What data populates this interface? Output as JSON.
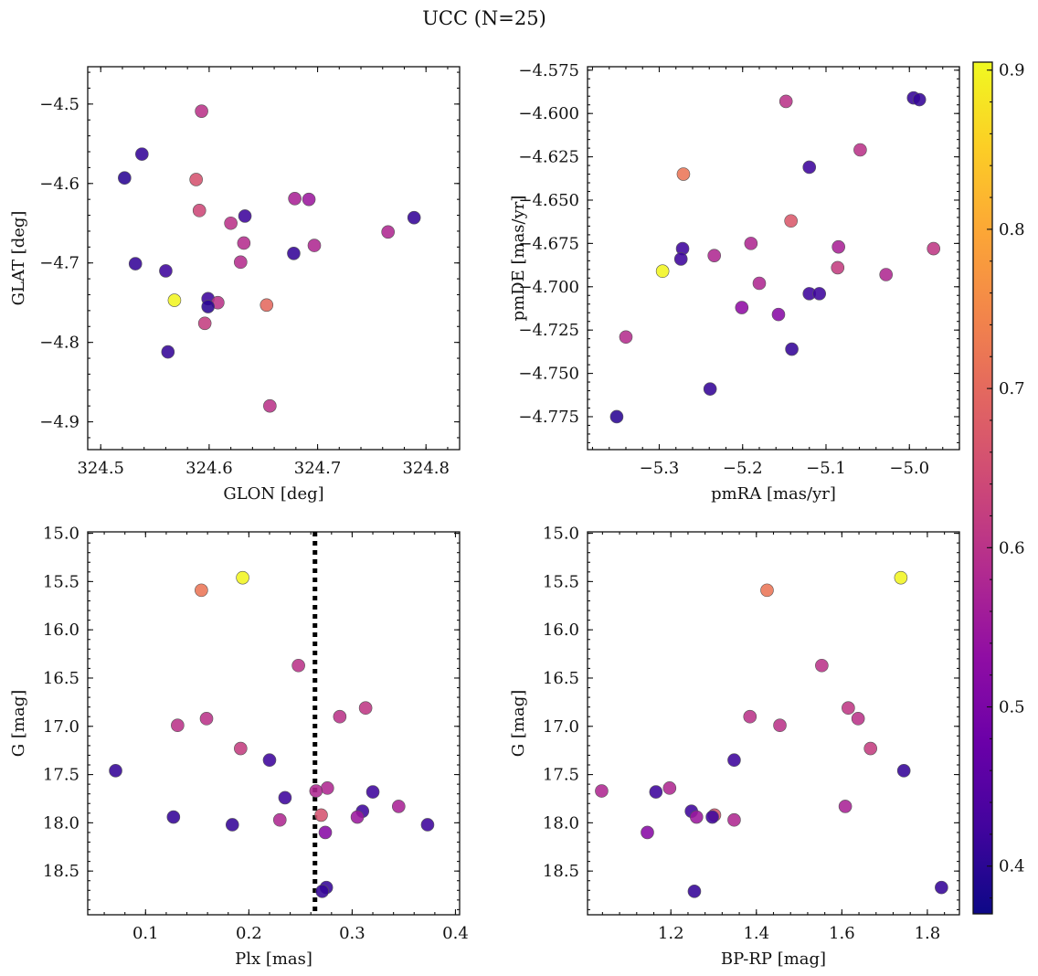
{
  "figure": {
    "title": "UCC (N=25)"
  },
  "colorbar": {
    "vmin": 0.37,
    "vmax": 0.905,
    "ticks": [
      0.4,
      0.5,
      0.6,
      0.7,
      0.8,
      0.9
    ],
    "ticklabels": [
      "0.4",
      "0.5",
      "0.6",
      "0.7",
      "0.8",
      "0.9"
    ],
    "colormap": "plasma"
  },
  "chart_data": [
    {
      "type": "scatter",
      "xlabel": "GLON [deg]",
      "ylabel": "GLAT [deg]",
      "xlim": [
        324.488,
        324.831
      ],
      "ylim": [
        -4.935,
        -4.453
      ],
      "yinvert": false,
      "xticks": [
        324.5,
        324.6,
        324.7,
        324.8
      ],
      "xticklabels": [
        "324.5",
        "324.6",
        "324.7",
        "324.8"
      ],
      "yticks": [
        -4.5,
        -4.6,
        -4.7,
        -4.8,
        -4.9
      ],
      "yticklabels": [
        "−4.5",
        "−4.6",
        "−4.7",
        "−4.8",
        "−4.9"
      ],
      "points": [
        {
          "x": 324.593,
          "y": -4.509,
          "c": 0.6
        },
        {
          "x": 324.538,
          "y": -4.563,
          "c": 0.41
        },
        {
          "x": 324.522,
          "y": -4.593,
          "c": 0.4
        },
        {
          "x": 324.588,
          "y": -4.595,
          "c": 0.66
        },
        {
          "x": 324.591,
          "y": -4.634,
          "c": 0.64
        },
        {
          "x": 324.633,
          "y": -4.641,
          "c": 0.42
        },
        {
          "x": 324.679,
          "y": -4.619,
          "c": 0.57
        },
        {
          "x": 324.692,
          "y": -4.62,
          "c": 0.55
        },
        {
          "x": 324.789,
          "y": -4.643,
          "c": 0.41
        },
        {
          "x": 324.62,
          "y": -4.65,
          "c": 0.6
        },
        {
          "x": 324.765,
          "y": -4.661,
          "c": 0.58
        },
        {
          "x": 324.632,
          "y": -4.675,
          "c": 0.59
        },
        {
          "x": 324.697,
          "y": -4.678,
          "c": 0.58
        },
        {
          "x": 324.678,
          "y": -4.688,
          "c": 0.41
        },
        {
          "x": 324.629,
          "y": -4.699,
          "c": 0.59
        },
        {
          "x": 324.532,
          "y": -4.701,
          "c": 0.41
        },
        {
          "x": 324.56,
          "y": -4.71,
          "c": 0.42
        },
        {
          "x": 324.599,
          "y": -4.745,
          "c": 0.42
        },
        {
          "x": 324.608,
          "y": -4.75,
          "c": 0.6
        },
        {
          "x": 324.568,
          "y": -4.747,
          "c": 0.9
        },
        {
          "x": 324.599,
          "y": -4.755,
          "c": 0.4
        },
        {
          "x": 324.653,
          "y": -4.753,
          "c": 0.7
        },
        {
          "x": 324.596,
          "y": -4.776,
          "c": 0.62
        },
        {
          "x": 324.562,
          "y": -4.812,
          "c": 0.41
        },
        {
          "x": 324.656,
          "y": -4.88,
          "c": 0.6
        }
      ]
    },
    {
      "type": "scatter",
      "xlabel": "pmRA [mas/yr]",
      "ylabel": "pmDE [mas/yr]",
      "xlim": [
        -5.386,
        -4.94
      ],
      "ylim": [
        -4.794,
        -4.573
      ],
      "yinvert": false,
      "xticks": [
        -5.3,
        -5.2,
        -5.1,
        -5.0
      ],
      "xticklabels": [
        "−5.3",
        "−5.2",
        "−5.1",
        "−5.0"
      ],
      "yticks": [
        -4.575,
        -4.6,
        -4.625,
        -4.65,
        -4.675,
        -4.7,
        -4.725,
        -4.75,
        -4.775
      ],
      "yticklabels": [
        "−4.575",
        "−4.600",
        "−4.625",
        "−4.650",
        "−4.675",
        "−4.700",
        "−4.725",
        "−4.750",
        "−4.775"
      ],
      "points": [
        {
          "x": -4.995,
          "y": -4.591,
          "c": 0.41
        },
        {
          "x": -4.988,
          "y": -4.592,
          "c": 0.41
        },
        {
          "x": -5.148,
          "y": -4.593,
          "c": 0.6
        },
        {
          "x": -5.059,
          "y": -4.621,
          "c": 0.6
        },
        {
          "x": -5.12,
          "y": -4.631,
          "c": 0.42
        },
        {
          "x": -5.271,
          "y": -4.635,
          "c": 0.72
        },
        {
          "x": -5.142,
          "y": -4.662,
          "c": 0.67
        },
        {
          "x": -5.19,
          "y": -4.675,
          "c": 0.58
        },
        {
          "x": -5.085,
          "y": -4.677,
          "c": 0.57
        },
        {
          "x": -4.971,
          "y": -4.678,
          "c": 0.61
        },
        {
          "x": -5.272,
          "y": -4.678,
          "c": 0.42
        },
        {
          "x": -5.234,
          "y": -4.682,
          "c": 0.58
        },
        {
          "x": -5.274,
          "y": -4.684,
          "c": 0.42
        },
        {
          "x": -5.086,
          "y": -4.689,
          "c": 0.62
        },
        {
          "x": -5.296,
          "y": -4.691,
          "c": 0.9
        },
        {
          "x": -5.028,
          "y": -4.693,
          "c": 0.58
        },
        {
          "x": -5.18,
          "y": -4.698,
          "c": 0.58
        },
        {
          "x": -5.12,
          "y": -4.704,
          "c": 0.42
        },
        {
          "x": -5.108,
          "y": -4.704,
          "c": 0.42
        },
        {
          "x": -5.201,
          "y": -4.712,
          "c": 0.53
        },
        {
          "x": -5.157,
          "y": -4.716,
          "c": 0.52
        },
        {
          "x": -5.34,
          "y": -4.729,
          "c": 0.59
        },
        {
          "x": -5.141,
          "y": -4.736,
          "c": 0.41
        },
        {
          "x": -5.239,
          "y": -4.759,
          "c": 0.41
        },
        {
          "x": -5.351,
          "y": -4.775,
          "c": 0.4
        }
      ]
    },
    {
      "type": "scatter",
      "xlabel": "Plx [mas]",
      "ylabel": "G [mag]",
      "xlim": [
        0.044,
        0.404
      ],
      "ylim": [
        14.985,
        18.953
      ],
      "yinvert": true,
      "xticks": [
        0.1,
        0.2,
        0.3,
        0.4
      ],
      "xticklabels": [
        "0.1",
        "0.2",
        "0.3",
        "0.4"
      ],
      "yticks": [
        15.0,
        15.5,
        16.0,
        16.5,
        17.0,
        17.5,
        18.0,
        18.5
      ],
      "yticklabels": [
        "15.0",
        "15.5",
        "16.0",
        "16.5",
        "17.0",
        "17.5",
        "18.0",
        "18.5"
      ],
      "vline": 0.264,
      "points": [
        {
          "x": 0.194,
          "y": 15.46,
          "c": 0.9
        },
        {
          "x": 0.154,
          "y": 15.59,
          "c": 0.72
        },
        {
          "x": 0.248,
          "y": 16.37,
          "c": 0.6
        },
        {
          "x": 0.313,
          "y": 16.81,
          "c": 0.61
        },
        {
          "x": 0.288,
          "y": 16.9,
          "c": 0.6
        },
        {
          "x": 0.159,
          "y": 16.92,
          "c": 0.6
        },
        {
          "x": 0.131,
          "y": 16.99,
          "c": 0.6
        },
        {
          "x": 0.192,
          "y": 17.23,
          "c": 0.62
        },
        {
          "x": 0.22,
          "y": 17.35,
          "c": 0.42
        },
        {
          "x": 0.071,
          "y": 17.46,
          "c": 0.41
        },
        {
          "x": 0.276,
          "y": 17.64,
          "c": 0.58
        },
        {
          "x": 0.265,
          "y": 17.67,
          "c": 0.58
        },
        {
          "x": 0.32,
          "y": 17.68,
          "c": 0.42
        },
        {
          "x": 0.235,
          "y": 17.74,
          "c": 0.42
        },
        {
          "x": 0.345,
          "y": 17.83,
          "c": 0.57
        },
        {
          "x": 0.31,
          "y": 17.88,
          "c": 0.42
        },
        {
          "x": 0.27,
          "y": 17.92,
          "c": 0.66
        },
        {
          "x": 0.127,
          "y": 17.94,
          "c": 0.41
        },
        {
          "x": 0.305,
          "y": 17.94,
          "c": 0.55
        },
        {
          "x": 0.23,
          "y": 17.97,
          "c": 0.58
        },
        {
          "x": 0.184,
          "y": 18.02,
          "c": 0.41
        },
        {
          "x": 0.373,
          "y": 18.02,
          "c": 0.42
        },
        {
          "x": 0.274,
          "y": 18.1,
          "c": 0.52
        },
        {
          "x": 0.275,
          "y": 18.67,
          "c": 0.41
        },
        {
          "x": 0.271,
          "y": 18.71,
          "c": 0.41
        }
      ]
    },
    {
      "type": "scatter",
      "xlabel": "BP-RP [mag]",
      "ylabel": "G [mag]",
      "xlim": [
        1.005,
        1.875
      ],
      "ylim": [
        14.985,
        18.953
      ],
      "yinvert": true,
      "xticks": [
        1.2,
        1.4,
        1.6,
        1.8
      ],
      "xticklabels": [
        "1.2",
        "1.4",
        "1.6",
        "1.8"
      ],
      "yticks": [
        15.0,
        15.5,
        16.0,
        16.5,
        17.0,
        17.5,
        18.0,
        18.5
      ],
      "yticklabels": [
        "15.0",
        "15.5",
        "16.0",
        "16.5",
        "17.0",
        "17.5",
        "18.0",
        "18.5"
      ],
      "points": [
        {
          "x": 1.738,
          "y": 15.46,
          "c": 0.9
        },
        {
          "x": 1.425,
          "y": 15.59,
          "c": 0.72
        },
        {
          "x": 1.553,
          "y": 16.37,
          "c": 0.6
        },
        {
          "x": 1.615,
          "y": 16.81,
          "c": 0.61
        },
        {
          "x": 1.385,
          "y": 16.9,
          "c": 0.6
        },
        {
          "x": 1.638,
          "y": 16.92,
          "c": 0.6
        },
        {
          "x": 1.455,
          "y": 16.99,
          "c": 0.6
        },
        {
          "x": 1.667,
          "y": 17.23,
          "c": 0.62
        },
        {
          "x": 1.348,
          "y": 17.35,
          "c": 0.42
        },
        {
          "x": 1.745,
          "y": 17.46,
          "c": 0.41
        },
        {
          "x": 1.197,
          "y": 17.64,
          "c": 0.58
        },
        {
          "x": 1.038,
          "y": 17.67,
          "c": 0.58
        },
        {
          "x": 1.165,
          "y": 17.68,
          "c": 0.42
        },
        {
          "x": 1.608,
          "y": 17.83,
          "c": 0.57
        },
        {
          "x": 1.248,
          "y": 17.88,
          "c": 0.42
        },
        {
          "x": 1.302,
          "y": 17.92,
          "c": 0.66
        },
        {
          "x": 1.297,
          "y": 17.94,
          "c": 0.42
        },
        {
          "x": 1.26,
          "y": 17.94,
          "c": 0.55
        },
        {
          "x": 1.348,
          "y": 17.97,
          "c": 0.58
        },
        {
          "x": 1.145,
          "y": 18.1,
          "c": 0.52
        },
        {
          "x": 1.833,
          "y": 18.67,
          "c": 0.41
        },
        {
          "x": 1.255,
          "y": 18.71,
          "c": 0.41
        }
      ]
    }
  ]
}
